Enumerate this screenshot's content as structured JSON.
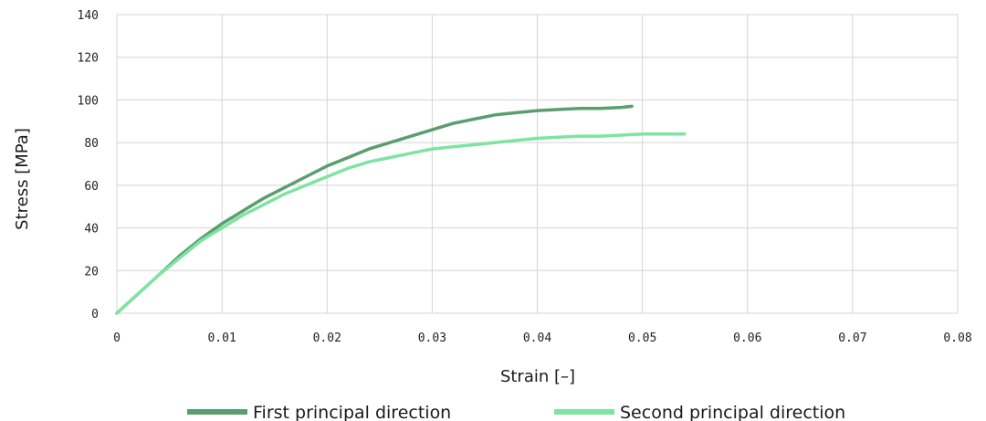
{
  "chart_data": {
    "type": "line",
    "xlabel": "Strain [–]",
    "ylabel": "Stress [MPa]",
    "xlim": [
      0,
      0.08
    ],
    "ylim": [
      0,
      140
    ],
    "x_ticks": [
      0,
      0.01,
      0.02,
      0.03,
      0.04,
      0.05,
      0.06,
      0.07,
      0.08
    ],
    "x_tick_labels": [
      "0",
      "0.01",
      "0.02",
      "0.03",
      "0.04",
      "0.05",
      "0.06",
      "0.07",
      "0.08"
    ],
    "y_ticks": [
      0,
      20,
      40,
      60,
      80,
      100,
      120,
      140
    ],
    "y_tick_labels": [
      "0",
      "20",
      "40",
      "60",
      "80",
      "100",
      "120",
      "140"
    ],
    "grid": true,
    "legend_position": "bottom",
    "series": [
      {
        "name": "First principal direction",
        "color": "#5a9e6f",
        "x": [
          0,
          0.002,
          0.004,
          0.006,
          0.008,
          0.01,
          0.012,
          0.014,
          0.016,
          0.018,
          0.02,
          0.022,
          0.024,
          0.026,
          0.028,
          0.03,
          0.032,
          0.034,
          0.036,
          0.038,
          0.04,
          0.042,
          0.044,
          0.046,
          0.048,
          0.049
        ],
        "y": [
          0,
          9,
          18,
          27,
          35,
          42,
          48,
          54,
          59,
          64,
          69,
          73,
          77,
          80,
          83,
          86,
          89,
          91,
          93,
          94,
          95,
          95.5,
          96,
          96,
          96.5,
          97
        ]
      },
      {
        "name": "Second principal direction",
        "color": "#7fe3a2",
        "x": [
          0,
          0.002,
          0.004,
          0.006,
          0.008,
          0.01,
          0.012,
          0.014,
          0.016,
          0.018,
          0.02,
          0.022,
          0.024,
          0.026,
          0.028,
          0.03,
          0.032,
          0.034,
          0.036,
          0.038,
          0.04,
          0.042,
          0.044,
          0.046,
          0.048,
          0.05,
          0.052,
          0.054
        ],
        "y": [
          0,
          9,
          18,
          26,
          34,
          40,
          46,
          51,
          56,
          60,
          64,
          68,
          71,
          73,
          75,
          77,
          78,
          79,
          80,
          81,
          82,
          82.5,
          83,
          83,
          83.5,
          84,
          84,
          84
        ]
      }
    ]
  }
}
